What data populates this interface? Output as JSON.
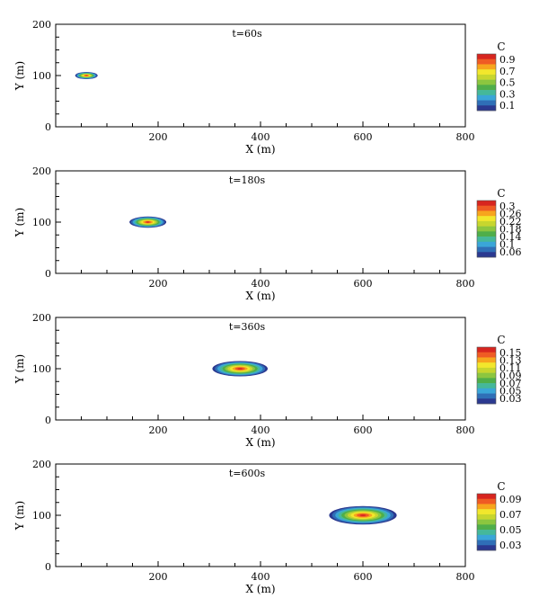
{
  "chart_data": [
    {
      "type": "contour",
      "title": "t=60s",
      "xlabel": "X (m)",
      "ylabel": "Y (m)",
      "xlim": [
        0,
        800
      ],
      "ylim": [
        0,
        200
      ],
      "xticks": [
        "200",
        "400",
        "600",
        "800"
      ],
      "yticks": [
        "0",
        "100",
        "200"
      ],
      "plume": {
        "x": 60,
        "y": 100,
        "rx": 22,
        "ry": 7,
        "peak": 0.95
      },
      "legend": {
        "title": "C",
        "labels": [
          "0.9",
          "0.7",
          "0.5",
          "0.3",
          "0.1"
        ]
      }
    },
    {
      "type": "contour",
      "title": "t=180s",
      "xlabel": "X (m)",
      "ylabel": "Y (m)",
      "xlim": [
        0,
        800
      ],
      "ylim": [
        0,
        200
      ],
      "xticks": [
        "200",
        "400",
        "600",
        "800"
      ],
      "yticks": [
        "0",
        "100",
        "200"
      ],
      "plume": {
        "x": 180,
        "y": 100,
        "rx": 36,
        "ry": 11,
        "peak": 0.31
      },
      "legend": {
        "title": "C",
        "labels": [
          "0.3",
          "0.26",
          "0.22",
          "0.18",
          "0.14",
          "0.1",
          "0.06"
        ]
      }
    },
    {
      "type": "contour",
      "title": "t=360s",
      "xlabel": "X (m)",
      "ylabel": "Y (m)",
      "xlim": [
        0,
        800
      ],
      "ylim": [
        0,
        200
      ],
      "xticks": [
        "200",
        "400",
        "600",
        "800"
      ],
      "yticks": [
        "0",
        "100",
        "200"
      ],
      "plume": {
        "x": 360,
        "y": 100,
        "rx": 54,
        "ry": 15,
        "peak": 0.16
      },
      "legend": {
        "title": "C",
        "labels": [
          "0.15",
          "0.13",
          "0.11",
          "0.09",
          "0.07",
          "0.05",
          "0.03"
        ]
      }
    },
    {
      "type": "contour",
      "title": "t=600s",
      "xlabel": "X (m)",
      "ylabel": "Y (m)",
      "xlim": [
        0,
        800
      ],
      "ylim": [
        0,
        200
      ],
      "xticks": [
        "200",
        "400",
        "600",
        "800"
      ],
      "yticks": [
        "0",
        "100",
        "200"
      ],
      "plume": {
        "x": 600,
        "y": 100,
        "rx": 66,
        "ry": 18,
        "peak": 0.1
      },
      "legend": {
        "title": "C",
        "labels": [
          "0.09",
          "0.07",
          "0.05",
          "0.03"
        ]
      }
    }
  ],
  "colors": {
    "scale": [
      "#2b3990",
      "#2f6fb7",
      "#3aa6d8",
      "#45b89a",
      "#4fae4a",
      "#8cc63f",
      "#c7d62e",
      "#f2e72c",
      "#f7a51d",
      "#ef5b24",
      "#d7251f"
    ],
    "axis": "#000000"
  }
}
